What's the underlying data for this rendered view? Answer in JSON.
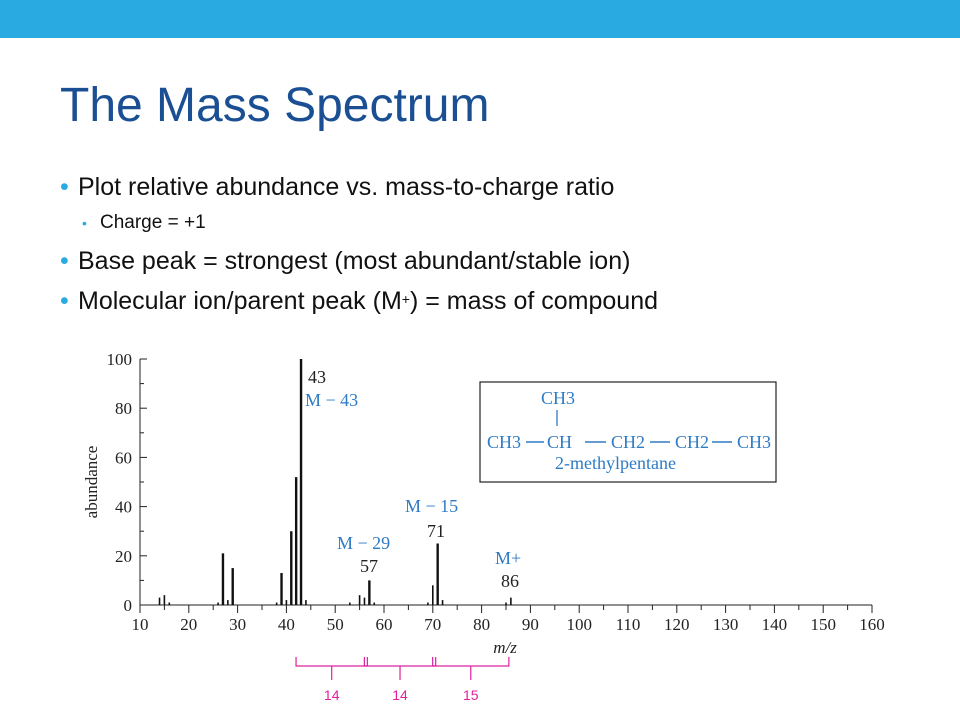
{
  "slide": {
    "title": "The Mass Spectrum",
    "bullets": [
      {
        "level": 1,
        "text": "Plot relative abundance vs. mass-to-charge ratio"
      },
      {
        "level": 2,
        "text": "Charge = +1"
      },
      {
        "level": 1,
        "text": "Base peak = strongest (most abundant/stable ion)"
      },
      {
        "level": 1,
        "text_before": "Molecular ion/parent peak (M",
        "sup": "+",
        "text_after": ") = mass of compound"
      }
    ]
  },
  "chart_data": {
    "type": "bar",
    "xlabel": "m/z",
    "ylabel": "abundance",
    "xlim": [
      10,
      160
    ],
    "ylim": [
      0,
      100
    ],
    "x_ticks": [
      "10",
      "20",
      "30",
      "40",
      "50",
      "60",
      "70",
      "80",
      "90",
      "100",
      "110",
      "120",
      "130",
      "140",
      "150",
      "160"
    ],
    "y_ticks": [
      "0",
      "20",
      "40",
      "60",
      "80",
      "100"
    ],
    "grid": false,
    "peaks": [
      {
        "mz": 14,
        "abundance": 3
      },
      {
        "mz": 15,
        "abundance": 4
      },
      {
        "mz": 16,
        "abundance": 1
      },
      {
        "mz": 26,
        "abundance": 1
      },
      {
        "mz": 27,
        "abundance": 21
      },
      {
        "mz": 28,
        "abundance": 2
      },
      {
        "mz": 29,
        "abundance": 15
      },
      {
        "mz": 38,
        "abundance": 1
      },
      {
        "mz": 39,
        "abundance": 13
      },
      {
        "mz": 40,
        "abundance": 2
      },
      {
        "mz": 41,
        "abundance": 30
      },
      {
        "mz": 42,
        "abundance": 52
      },
      {
        "mz": 43,
        "abundance": 100
      },
      {
        "mz": 44,
        "abundance": 2
      },
      {
        "mz": 53,
        "abundance": 1
      },
      {
        "mz": 55,
        "abundance": 4
      },
      {
        "mz": 56,
        "abundance": 3
      },
      {
        "mz": 57,
        "abundance": 10
      },
      {
        "mz": 58,
        "abundance": 1
      },
      {
        "mz": 69,
        "abundance": 1
      },
      {
        "mz": 70,
        "abundance": 8
      },
      {
        "mz": 71,
        "abundance": 25
      },
      {
        "mz": 72,
        "abundance": 2
      },
      {
        "mz": 85,
        "abundance": 1
      },
      {
        "mz": 86,
        "abundance": 3
      }
    ],
    "annotations": [
      {
        "text": "43",
        "color": "#222222"
      },
      {
        "text": "M − 43",
        "color": "#2e7bc4"
      },
      {
        "text": "M − 29",
        "color": "#2e7bc4"
      },
      {
        "text": "57",
        "color": "#222222"
      },
      {
        "text": "M − 15",
        "color": "#2e7bc4"
      },
      {
        "text": "71",
        "color": "#222222"
      },
      {
        "text": "M+",
        "color": "#2e7bc4"
      },
      {
        "text": "86",
        "color": "#222222"
      }
    ],
    "structure": {
      "top_group": "CH3",
      "main_chain": [
        "CH3",
        "CH",
        "CH2",
        "CH2",
        "CH3"
      ],
      "name": "2-methylpentane"
    },
    "brackets": {
      "color": "#e020a0",
      "ranges": [
        [
          43,
          57
        ],
        [
          57,
          71
        ],
        [
          71,
          86
        ]
      ],
      "labels": [
        "14",
        "14",
        "15"
      ]
    },
    "colors": {
      "axis": "#222222",
      "peak": "#111111",
      "blue_label": "#2e7bc4",
      "bracket": "#e020a0"
    }
  }
}
